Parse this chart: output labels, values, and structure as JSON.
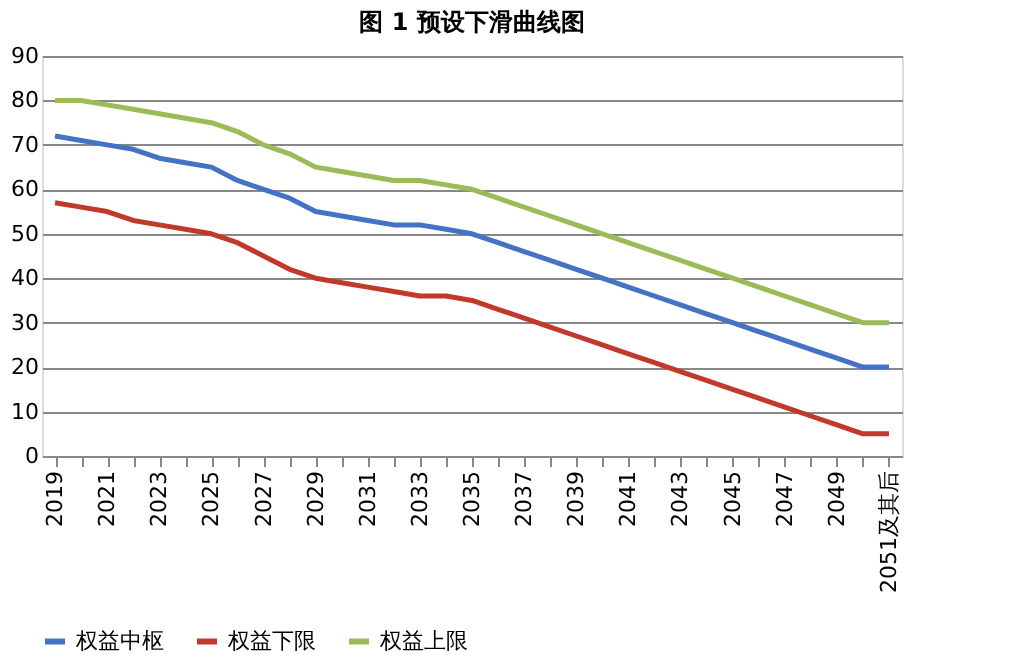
{
  "chart_data": {
    "type": "line",
    "title": "图 1 预设下滑曲线图",
    "categories": [
      "2019",
      null,
      "2021",
      null,
      "2023",
      null,
      "2025",
      null,
      "2027",
      null,
      "2029",
      null,
      "2031",
      null,
      "2033",
      null,
      "2035",
      null,
      "2037",
      null,
      "2039",
      null,
      "2041",
      null,
      "2043",
      null,
      "2045",
      null,
      "2047",
      null,
      "2049",
      null,
      "2051及其后"
    ],
    "series": [
      {
        "name": "权益中枢",
        "color": "#4472c4",
        "values": [
          72,
          71,
          70,
          69,
          67,
          66,
          65,
          62,
          60,
          58,
          55,
          54,
          53,
          52,
          52,
          51,
          50,
          48,
          46,
          44,
          42,
          40,
          38,
          36,
          34,
          32,
          30,
          28,
          26,
          24,
          22,
          20,
          20
        ]
      },
      {
        "name": "权益下限",
        "color": "#c0392b",
        "values": [
          57,
          56,
          55,
          53,
          52,
          51,
          50,
          48,
          45,
          42,
          40,
          39,
          38,
          37,
          36,
          36,
          35,
          33,
          31,
          29,
          27,
          25,
          23,
          21,
          19,
          17,
          15,
          13,
          11,
          9,
          7,
          5,
          5
        ]
      },
      {
        "name": "权益上限",
        "color": "#9bbb59",
        "values": [
          80,
          80,
          79,
          78,
          77,
          76,
          75,
          73,
          70,
          68,
          65,
          64,
          63,
          62,
          62,
          61,
          60,
          58,
          56,
          54,
          52,
          50,
          48,
          46,
          44,
          42,
          40,
          38,
          36,
          34,
          32,
          30,
          30
        ]
      }
    ],
    "ylim": [
      0,
      90
    ],
    "yticks": [
      0,
      10,
      20,
      30,
      40,
      50,
      60,
      70,
      80,
      90
    ],
    "grid": "y",
    "legend": "bottom",
    "marker": "none",
    "line_style": "solid"
  }
}
